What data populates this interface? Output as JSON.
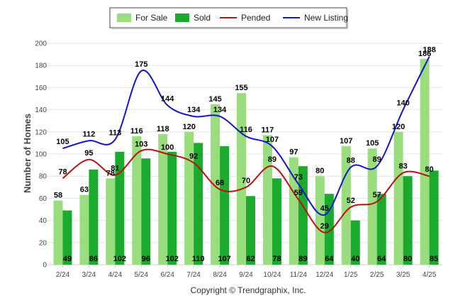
{
  "chart_data": {
    "type": "bar",
    "ylabel": "Number of Homes",
    "xlabel": "",
    "credit": "Copyright © Trendgraphix, Inc.",
    "ylim": [
      0,
      200
    ],
    "yticks": [
      0,
      20,
      40,
      60,
      80,
      100,
      120,
      140,
      160,
      180,
      200
    ],
    "grid": true,
    "legend_position": "top-center",
    "categories": [
      "2/24",
      "3/24",
      "4/24",
      "5/24",
      "6/24",
      "7/24",
      "8/24",
      "9/24",
      "10/24",
      "11/24",
      "12/24",
      "1/25",
      "2/25",
      "3/25",
      "4/25"
    ],
    "series": [
      {
        "name": "For Sale",
        "kind": "bar",
        "color": "#99dd7f",
        "values": [
          58,
          63,
          78,
          116,
          118,
          120,
          145,
          155,
          117,
          97,
          80,
          107,
          105,
          120,
          186
        ]
      },
      {
        "name": "Sold",
        "kind": "bar",
        "color": "#1aaa2e",
        "values": [
          49,
          86,
          102,
          96,
          102,
          110,
          107,
          62,
          78,
          89,
          64,
          40,
          64,
          80,
          85
        ]
      },
      {
        "name": "Pended",
        "kind": "line",
        "color": "#bb1111",
        "values": [
          78,
          95,
          81,
          103,
          100,
          92,
          68,
          70,
          89,
          59,
          29,
          52,
          57,
          83,
          80
        ]
      },
      {
        "name": "New Listing",
        "kind": "line",
        "color": "#1414cc",
        "values": [
          105,
          112,
          113,
          175,
          144,
          134,
          134,
          116,
          107,
          73,
          45,
          88,
          89,
          140,
          188
        ]
      }
    ]
  }
}
